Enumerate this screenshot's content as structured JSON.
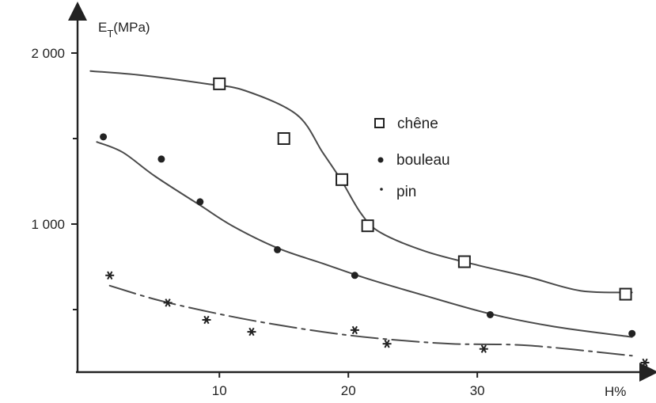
{
  "chart_data": {
    "type": "scatter",
    "ylabel_main": "E",
    "ylabel_sub": "T",
    "ylabel_unit": "(MPa)",
    "xlabel": "H%",
    "xlim": [
      -1,
      43
    ],
    "ylim": [
      0,
      2000
    ],
    "x_ticks": [
      10,
      20,
      30
    ],
    "x_tick_labels": [
      "10",
      "20",
      "30"
    ],
    "y_ticks": [
      1000,
      2000
    ],
    "y_tick_labels": [
      "1 000",
      "2 000"
    ],
    "y_minor_ticks": [
      500,
      1500
    ],
    "grid": false,
    "legend_position": "upper-right",
    "colors": {
      "ink": "#222222",
      "curve": "#4a4a4a"
    },
    "series": [
      {
        "name": "chêne",
        "marker": "open-square",
        "points": [
          [
            10,
            1820
          ],
          [
            15,
            1500
          ],
          [
            19.5,
            1260
          ],
          [
            21.5,
            990
          ],
          [
            29,
            780
          ],
          [
            41.5,
            590
          ]
        ],
        "curve": [
          [
            0,
            1895
          ],
          [
            4,
            1870
          ],
          [
            9,
            1820
          ],
          [
            12,
            1780
          ],
          [
            16,
            1640
          ],
          [
            18,
            1420
          ],
          [
            19.5,
            1250
          ],
          [
            21,
            1060
          ],
          [
            22.5,
            950
          ],
          [
            26,
            840
          ],
          [
            30,
            760
          ],
          [
            34,
            690
          ],
          [
            38,
            610
          ],
          [
            42,
            600
          ]
        ]
      },
      {
        "name": "bouleau",
        "marker": "filled-dot",
        "points": [
          [
            1,
            1510
          ],
          [
            5.5,
            1380
          ],
          [
            8.5,
            1130
          ],
          [
            14.5,
            850
          ],
          [
            20.5,
            700
          ],
          [
            31,
            470
          ],
          [
            42,
            360
          ]
        ],
        "curve": [
          [
            0.5,
            1480
          ],
          [
            2.5,
            1420
          ],
          [
            5,
            1280
          ],
          [
            8.5,
            1110
          ],
          [
            11,
            990
          ],
          [
            14.5,
            860
          ],
          [
            18,
            770
          ],
          [
            21.5,
            680
          ],
          [
            26,
            580
          ],
          [
            31,
            475
          ],
          [
            36,
            400
          ],
          [
            42,
            340
          ]
        ]
      },
      {
        "name": "pin",
        "marker": "asterisk",
        "points": [
          [
            1.5,
            700
          ],
          [
            6,
            540
          ],
          [
            9,
            440
          ],
          [
            12.5,
            370
          ],
          [
            20.5,
            380
          ],
          [
            23,
            300
          ],
          [
            30.5,
            270
          ],
          [
            43,
            190
          ]
        ],
        "curve": [
          [
            1.5,
            640
          ],
          [
            5,
            560
          ],
          [
            9,
            490
          ],
          [
            13,
            430
          ],
          [
            18,
            370
          ],
          [
            22.5,
            330
          ],
          [
            28,
            300
          ],
          [
            34,
            290
          ],
          [
            42,
            230
          ]
        ]
      }
    ]
  }
}
